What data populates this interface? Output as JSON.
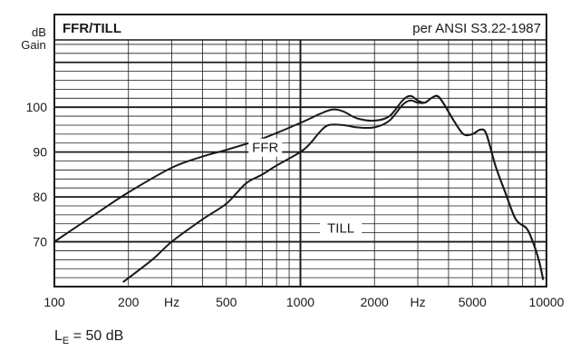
{
  "chart_data": {
    "type": "line",
    "title": "FFR/TILL",
    "subtitle": "per ANSI S3.22-1987",
    "ylabel": "dB\nGain",
    "xlabel": "Hz",
    "x_scale": "log",
    "xlim": [
      100,
      10000
    ],
    "ylim": [
      60,
      115
    ],
    "grid": true,
    "x_ticks": [
      {
        "value": 100,
        "label": "100"
      },
      {
        "value": 200,
        "label": "200"
      },
      {
        "value": 500,
        "label": "500"
      },
      {
        "value": 1000,
        "label": "1000"
      },
      {
        "value": 2000,
        "label": "2000"
      },
      {
        "value": 5000,
        "label": "5000"
      },
      {
        "value": 10000,
        "label": "10000"
      }
    ],
    "x_unit_labels": [
      {
        "value": 300,
        "label": "Hz"
      },
      {
        "value": 3000,
        "label": "Hz"
      }
    ],
    "y_ticks": [
      {
        "value": 70,
        "label": "70"
      },
      {
        "value": 80,
        "label": "80"
      },
      {
        "value": 90,
        "label": "90"
      },
      {
        "value": 100,
        "label": "100"
      }
    ],
    "series": [
      {
        "name": "FFR",
        "points": [
          [
            100,
            70
          ],
          [
            150,
            76.5
          ],
          [
            200,
            81
          ],
          [
            300,
            86.5
          ],
          [
            400,
            89
          ],
          [
            500,
            90.5
          ],
          [
            700,
            93
          ],
          [
            1000,
            96.5
          ],
          [
            1200,
            98.5
          ],
          [
            1350,
            99.5
          ],
          [
            1500,
            99
          ],
          [
            1700,
            97.5
          ],
          [
            2000,
            97
          ],
          [
            2300,
            98
          ],
          [
            2600,
            101.5
          ],
          [
            2800,
            102.5
          ],
          [
            3000,
            101.5
          ],
          [
            3200,
            101
          ],
          [
            3400,
            102
          ],
          [
            3600,
            102.5
          ],
          [
            3800,
            101
          ],
          [
            4200,
            97
          ],
          [
            4600,
            94
          ],
          [
            5000,
            94
          ],
          [
            5400,
            95
          ],
          [
            5700,
            94
          ],
          [
            6200,
            87
          ],
          [
            6800,
            81
          ],
          [
            7500,
            75
          ],
          [
            8300,
            73
          ],
          [
            8800,
            70
          ],
          [
            9300,
            66
          ],
          [
            9700,
            61.5
          ]
        ]
      },
      {
        "name": "TILL",
        "points": [
          [
            190,
            61
          ],
          [
            250,
            66
          ],
          [
            300,
            70
          ],
          [
            400,
            75
          ],
          [
            500,
            78.5
          ],
          [
            600,
            83
          ],
          [
            700,
            85
          ],
          [
            800,
            87
          ],
          [
            1000,
            90
          ],
          [
            1100,
            92
          ],
          [
            1200,
            94.5
          ],
          [
            1300,
            96
          ],
          [
            1500,
            96
          ],
          [
            1700,
            95.5
          ],
          [
            2000,
            95.5
          ],
          [
            2300,
            97
          ],
          [
            2600,
            100.5
          ],
          [
            2800,
            101.5
          ],
          [
            3000,
            101
          ],
          [
            3200,
            101
          ],
          [
            3400,
            102
          ],
          [
            3600,
            102.5
          ],
          [
            3800,
            101
          ],
          [
            4200,
            97
          ],
          [
            4600,
            94
          ],
          [
            5000,
            94
          ],
          [
            5400,
            95
          ],
          [
            5700,
            94
          ],
          [
            6200,
            87
          ],
          [
            6800,
            81
          ],
          [
            7500,
            75
          ],
          [
            8300,
            73
          ],
          [
            8800,
            70
          ],
          [
            9300,
            66
          ],
          [
            9700,
            61.5
          ]
        ]
      }
    ],
    "annotations": [
      {
        "text": "FFR",
        "x": 720,
        "y": 91
      },
      {
        "text": "TILL",
        "x": 1460,
        "y": 73
      }
    ],
    "footnote": {
      "base": "L",
      "sub": "E",
      "rest": " = 50 dB"
    }
  }
}
